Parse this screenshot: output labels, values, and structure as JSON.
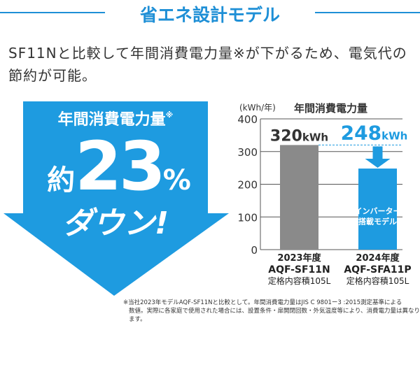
{
  "header": {
    "title": "省エネ設計モデル"
  },
  "description": "SF11Nと比較して年間消費電力量※が下がるため、電気代の節約が可能。",
  "arrow": {
    "label": "年間消費電力量",
    "label_mark": "※",
    "approx": "約",
    "percent_value": "23",
    "percent_sign": "%",
    "down": "ダウン!"
  },
  "chart_data": {
    "type": "bar",
    "title": "年間消費電力量",
    "ylabel": "(kWh/年)",
    "ylim": [
      0,
      400
    ],
    "yticks": [
      "0",
      "100",
      "200",
      "300",
      "400"
    ],
    "grid": true,
    "categories": [
      {
        "year": "2023年度",
        "model": "AQF-SF11N",
        "capacity": "定格内容積105L"
      },
      {
        "year": "2024年度",
        "model": "AQF-SFA11P",
        "capacity": "定格内容積105L"
      }
    ],
    "values": [
      320,
      248
    ],
    "value_labels": [
      {
        "num": "320",
        "unit": "kWh"
      },
      {
        "num": "248",
        "unit": "kWh"
      }
    ],
    "bar_colors": [
      "#8a8a8a",
      "#1e9be0"
    ],
    "bar_annotation": [
      "インバーター",
      "搭載モデル"
    ]
  },
  "footnote": [
    "※当社2023年モデルAQF-SF11Nと比較として。年間消費電力量はJIS C 9801ー3 :2015測定基準による",
    "数値。実際に各家庭で使用された場合には、設置条件・扉開閉回数・外気温度等により、消費電力量は異なります。"
  ]
}
